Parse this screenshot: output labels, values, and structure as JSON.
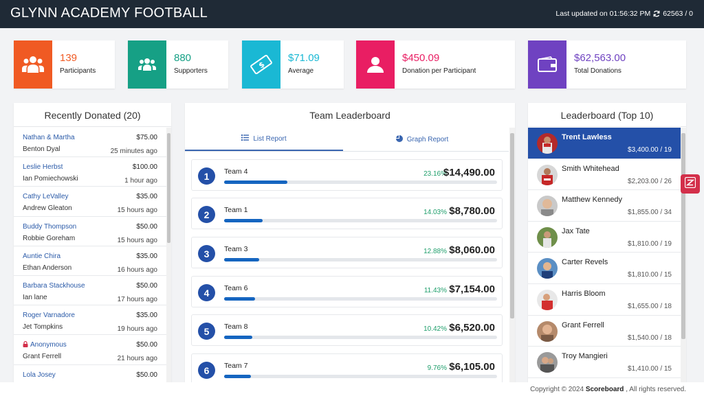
{
  "header": {
    "title": "GLYNN ACADEMY FOOTBALL",
    "updated_label": "Last updated on 01:56:32 PM",
    "counter": "62563 / 0"
  },
  "stats": [
    {
      "value": "139",
      "label": "Participants",
      "color": "#f05a23",
      "icon": "people-group-icon"
    },
    {
      "value": "880",
      "label": "Supporters",
      "color": "#16a085",
      "icon": "supporters-icon"
    },
    {
      "value": "$71.09",
      "label": "Average",
      "color": "#1ab8d4",
      "icon": "money-bill-icon"
    },
    {
      "value": "$450.09",
      "label": "Donation per Participant",
      "color": "#e91e63",
      "icon": "user-icon"
    },
    {
      "value": "$62,563.00",
      "label": "Total Donations",
      "color": "#6f42c1",
      "icon": "wallet-icon"
    }
  ],
  "recent": {
    "title": "Recently Donated (20)",
    "items": [
      {
        "name": "Nathan & Martha",
        "amount": "$75.00",
        "donor": "Benton Dyal",
        "ago": "25 minutes ago",
        "anonymous": false
      },
      {
        "name": "Leslie Herbst",
        "amount": "$100.00",
        "donor": "Ian Pomiechowski",
        "ago": "1 hour ago",
        "anonymous": false
      },
      {
        "name": "Cathy LeValley",
        "amount": "$35.00",
        "donor": "Andrew Gleaton",
        "ago": "15 hours ago",
        "anonymous": false
      },
      {
        "name": "Buddy Thompson",
        "amount": "$50.00",
        "donor": "Robbie Goreham",
        "ago": "15 hours ago",
        "anonymous": false
      },
      {
        "name": "Auntie Chira",
        "amount": "$35.00",
        "donor": "Ethan Anderson",
        "ago": "16 hours ago",
        "anonymous": false
      },
      {
        "name": "Barbara Stackhouse",
        "amount": "$50.00",
        "donor": "Ian lane",
        "ago": "17 hours ago",
        "anonymous": false
      },
      {
        "name": "Roger Varnadore",
        "amount": "$35.00",
        "donor": "Jet Tompkins",
        "ago": "19 hours ago",
        "anonymous": false
      },
      {
        "name": "Anonymous",
        "amount": "$50.00",
        "donor": "Grant Ferrell",
        "ago": "21 hours ago",
        "anonymous": true
      },
      {
        "name": "Lola Josey",
        "amount": "$50.00",
        "donor": "",
        "ago": "",
        "anonymous": false
      }
    ]
  },
  "teams": {
    "title": "Team Leaderboard",
    "tab_list": "List Report",
    "tab_graph": "Graph Report",
    "items": [
      {
        "rank": "1",
        "name": "Team 4",
        "percent": "23.16%",
        "share": 0.2316,
        "amount": "$14,490.00"
      },
      {
        "rank": "2",
        "name": "Team 1",
        "percent": "14.03%",
        "share": 0.1403,
        "amount": "$8,780.00"
      },
      {
        "rank": "3",
        "name": "Team 3",
        "percent": "12.88%",
        "share": 0.1288,
        "amount": "$8,060.00"
      },
      {
        "rank": "4",
        "name": "Team 6",
        "percent": "11.43%",
        "share": 0.1143,
        "amount": "$7,154.00"
      },
      {
        "rank": "5",
        "name": "Team 8",
        "percent": "10.42%",
        "share": 0.1042,
        "amount": "$6,520.00"
      },
      {
        "rank": "6",
        "name": "Team 7",
        "percent": "9.76%",
        "share": 0.0976,
        "amount": "$6,105.00"
      }
    ]
  },
  "top10": {
    "title": "Leaderboard (Top 10)",
    "items": [
      {
        "name": "Trent Lawless",
        "amount": "$3,400.00 / 19",
        "active": true
      },
      {
        "name": "Smith Whitehead",
        "amount": "$2,203.00 / 26",
        "active": false
      },
      {
        "name": "Matthew Kennedy",
        "amount": "$1,855.00 / 34",
        "active": false
      },
      {
        "name": "Jax Tate",
        "amount": "$1,810.00 / 19",
        "active": false
      },
      {
        "name": "Carter Revels",
        "amount": "$1,810.00 / 15",
        "active": false
      },
      {
        "name": "Harris Bloom",
        "amount": "$1,655.00 / 18",
        "active": false
      },
      {
        "name": "Grant Ferrell",
        "amount": "$1,540.00 / 18",
        "active": false
      },
      {
        "name": "Troy Mangieri",
        "amount": "$1,410.00 / 15",
        "active": false
      }
    ]
  },
  "footer": {
    "prefix": "Copyright © 2024",
    "brand": "Scoreboard",
    "suffix": ", All rights reserved."
  }
}
